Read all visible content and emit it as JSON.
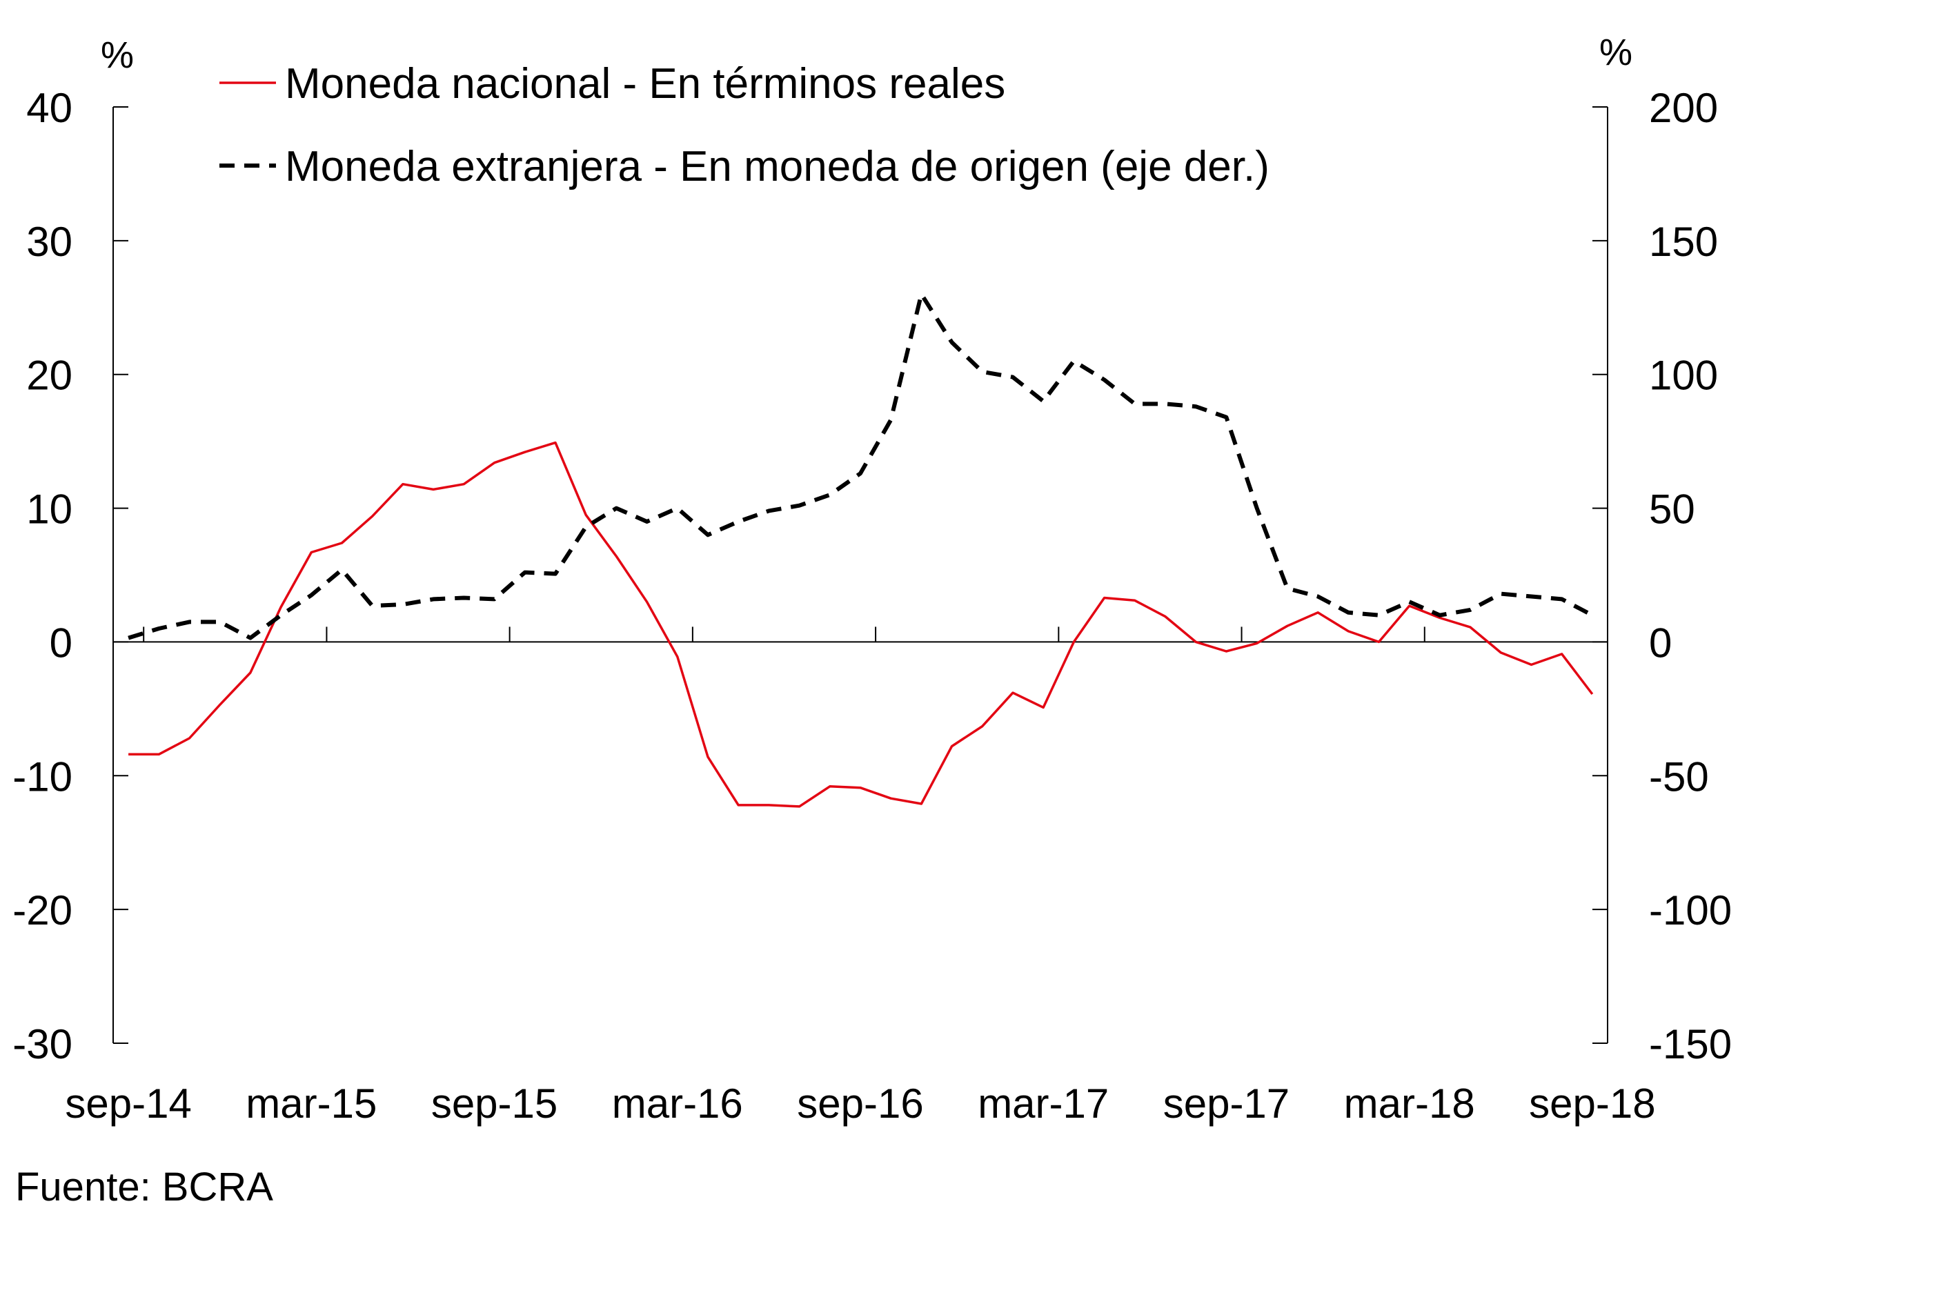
{
  "chart_data": {
    "type": "line",
    "left_axis": {
      "unit": "%",
      "ylim": [
        -30,
        40
      ],
      "ticks": [
        "40",
        "30",
        "20",
        "10",
        "0",
        "-10",
        "-20",
        "-30"
      ]
    },
    "right_axis": {
      "unit": "%",
      "ylim": [
        -150,
        200
      ],
      "ticks": [
        "200",
        "150",
        "100",
        "50",
        "0",
        "-50",
        "-100",
        "-150"
      ]
    },
    "x_tick_labels": [
      "sep-14",
      "mar-15",
      "sep-15",
      "mar-16",
      "sep-16",
      "mar-17",
      "sep-17",
      "mar-18",
      "sep-18"
    ],
    "x": [
      "sep-14",
      "oct-14",
      "nov-14",
      "dic-14",
      "ene-15",
      "feb-15",
      "mar-15",
      "abr-15",
      "may-15",
      "jun-15",
      "jul-15",
      "ago-15",
      "sep-15",
      "oct-15",
      "nov-15",
      "dic-15",
      "ene-16",
      "feb-16",
      "mar-16",
      "abr-16",
      "may-16",
      "jun-16",
      "jul-16",
      "ago-16",
      "sep-16",
      "oct-16",
      "nov-16",
      "dic-16",
      "ene-17",
      "feb-17",
      "mar-17",
      "abr-17",
      "may-17",
      "jun-17",
      "jul-17",
      "ago-17",
      "sep-17",
      "oct-17",
      "nov-17",
      "dic-17",
      "ene-18",
      "feb-18",
      "mar-18",
      "abr-18",
      "may-18",
      "jun-18",
      "jul-18",
      "ago-18",
      "sep-18"
    ],
    "series": [
      {
        "name": "Moneda nacional - En términos reales",
        "axis": "left",
        "color": "#e30613",
        "style": "solid",
        "values": [
          -8.4,
          -8.4,
          -7.2,
          -4.7,
          -2.3,
          2.6,
          6.7,
          7.4,
          9.4,
          11.8,
          11.4,
          11.8,
          13.4,
          14.2,
          14.9,
          9.5,
          6.4,
          3.0,
          -1.1,
          -8.6,
          -12.2,
          -12.2,
          -12.3,
          -10.8,
          -10.9,
          -11.7,
          -12.1,
          -7.8,
          -6.3,
          -3.8,
          -4.9,
          0.0,
          3.3,
          3.1,
          1.9,
          0.0,
          -0.7,
          -0.1,
          1.2,
          2.2,
          0.8,
          0.0,
          2.7,
          1.8,
          1.1,
          -0.8,
          -1.7,
          -0.9,
          -3.9
        ]
      },
      {
        "name": "Moneda extranjera - En moneda de origen (eje der.)",
        "axis": "right",
        "color": "#000000",
        "style": "dashed",
        "values": [
          1.5,
          5,
          7.5,
          7.5,
          1.5,
          10,
          17.5,
          27,
          13.5,
          14,
          16,
          16.5,
          16,
          26,
          25.5,
          43,
          50,
          45,
          50,
          40,
          45,
          49,
          51,
          55,
          63,
          83,
          130,
          112,
          101,
          99,
          90,
          105,
          98,
          89,
          89,
          88,
          84,
          50,
          20,
          17,
          11,
          10,
          15,
          10,
          12,
          18,
          17,
          16,
          10
        ]
      }
    ],
    "legend": "top-left",
    "grid": false
  },
  "source": "Fuente: BCRA"
}
